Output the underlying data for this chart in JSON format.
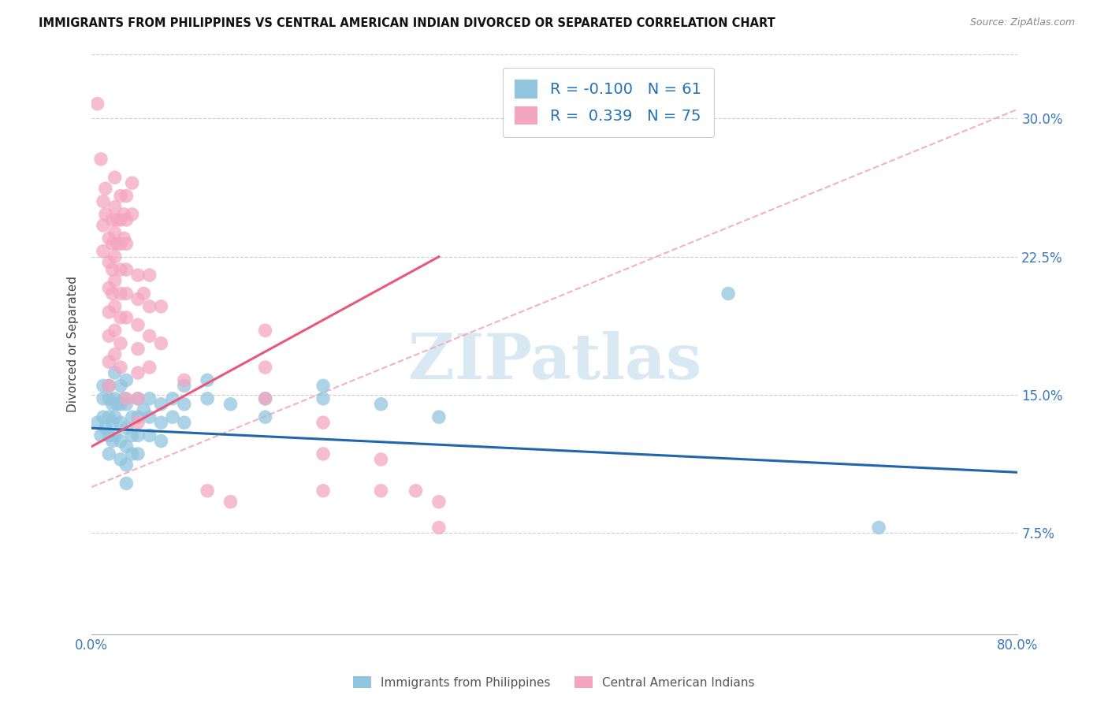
{
  "title": "IMMIGRANTS FROM PHILIPPINES VS CENTRAL AMERICAN INDIAN DIVORCED OR SEPARATED CORRELATION CHART",
  "source": "Source: ZipAtlas.com",
  "ylabel": "Divorced or Separated",
  "yticks": [
    "7.5%",
    "15.0%",
    "22.5%",
    "30.0%"
  ],
  "ytick_vals": [
    0.075,
    0.15,
    0.225,
    0.3
  ],
  "xlim": [
    0.0,
    0.8
  ],
  "ylim": [
    0.02,
    0.335
  ],
  "watermark": "ZIPatlas",
  "legend_blue_R": "R = -0.100",
  "legend_blue_N": "N = 61",
  "legend_pink_R": "R =  0.339",
  "legend_pink_N": "N = 75",
  "legend_label_blue": "Immigrants from Philippines",
  "legend_label_pink": "Central American Indians",
  "blue_color": "#92c5de",
  "pink_color": "#f4a6c0",
  "trendline_blue_color": "#2166ac",
  "trendline_pink_color": "#e8587a",
  "trendline_dashed_color": "#f4a6c0",
  "blue_trendline": [
    [
      0.0,
      0.132
    ],
    [
      0.8,
      0.108
    ]
  ],
  "pink_trendline": [
    [
      0.0,
      0.122
    ],
    [
      0.3,
      0.225
    ]
  ],
  "dashed_line": [
    [
      0.0,
      0.1
    ],
    [
      0.8,
      0.305
    ]
  ],
  "blue_scatter": [
    [
      0.005,
      0.135
    ],
    [
      0.008,
      0.128
    ],
    [
      0.01,
      0.155
    ],
    [
      0.01,
      0.148
    ],
    [
      0.01,
      0.138
    ],
    [
      0.012,
      0.132
    ],
    [
      0.015,
      0.155
    ],
    [
      0.015,
      0.148
    ],
    [
      0.015,
      0.138
    ],
    [
      0.015,
      0.128
    ],
    [
      0.015,
      0.118
    ],
    [
      0.018,
      0.145
    ],
    [
      0.018,
      0.135
    ],
    [
      0.018,
      0.125
    ],
    [
      0.02,
      0.162
    ],
    [
      0.02,
      0.148
    ],
    [
      0.02,
      0.138
    ],
    [
      0.02,
      0.128
    ],
    [
      0.022,
      0.145
    ],
    [
      0.025,
      0.155
    ],
    [
      0.025,
      0.145
    ],
    [
      0.025,
      0.135
    ],
    [
      0.025,
      0.125
    ],
    [
      0.025,
      0.115
    ],
    [
      0.028,
      0.148
    ],
    [
      0.03,
      0.158
    ],
    [
      0.03,
      0.145
    ],
    [
      0.03,
      0.132
    ],
    [
      0.03,
      0.122
    ],
    [
      0.03,
      0.112
    ],
    [
      0.03,
      0.102
    ],
    [
      0.035,
      0.138
    ],
    [
      0.035,
      0.128
    ],
    [
      0.035,
      0.118
    ],
    [
      0.04,
      0.148
    ],
    [
      0.04,
      0.138
    ],
    [
      0.04,
      0.128
    ],
    [
      0.04,
      0.118
    ],
    [
      0.045,
      0.142
    ],
    [
      0.05,
      0.148
    ],
    [
      0.05,
      0.138
    ],
    [
      0.05,
      0.128
    ],
    [
      0.06,
      0.145
    ],
    [
      0.06,
      0.135
    ],
    [
      0.06,
      0.125
    ],
    [
      0.07,
      0.148
    ],
    [
      0.07,
      0.138
    ],
    [
      0.08,
      0.155
    ],
    [
      0.08,
      0.145
    ],
    [
      0.08,
      0.135
    ],
    [
      0.1,
      0.158
    ],
    [
      0.1,
      0.148
    ],
    [
      0.12,
      0.145
    ],
    [
      0.15,
      0.148
    ],
    [
      0.15,
      0.138
    ],
    [
      0.2,
      0.155
    ],
    [
      0.2,
      0.148
    ],
    [
      0.25,
      0.145
    ],
    [
      0.3,
      0.138
    ],
    [
      0.55,
      0.205
    ],
    [
      0.68,
      0.078
    ]
  ],
  "pink_scatter": [
    [
      0.005,
      0.308
    ],
    [
      0.008,
      0.278
    ],
    [
      0.01,
      0.255
    ],
    [
      0.01,
      0.242
    ],
    [
      0.01,
      0.228
    ],
    [
      0.012,
      0.262
    ],
    [
      0.012,
      0.248
    ],
    [
      0.015,
      0.235
    ],
    [
      0.015,
      0.222
    ],
    [
      0.015,
      0.208
    ],
    [
      0.015,
      0.195
    ],
    [
      0.015,
      0.182
    ],
    [
      0.015,
      0.168
    ],
    [
      0.015,
      0.155
    ],
    [
      0.018,
      0.245
    ],
    [
      0.018,
      0.232
    ],
    [
      0.018,
      0.218
    ],
    [
      0.018,
      0.205
    ],
    [
      0.02,
      0.268
    ],
    [
      0.02,
      0.252
    ],
    [
      0.02,
      0.238
    ],
    [
      0.02,
      0.225
    ],
    [
      0.02,
      0.212
    ],
    [
      0.02,
      0.198
    ],
    [
      0.02,
      0.185
    ],
    [
      0.02,
      0.172
    ],
    [
      0.022,
      0.245
    ],
    [
      0.022,
      0.232
    ],
    [
      0.025,
      0.258
    ],
    [
      0.025,
      0.245
    ],
    [
      0.025,
      0.232
    ],
    [
      0.025,
      0.218
    ],
    [
      0.025,
      0.205
    ],
    [
      0.025,
      0.192
    ],
    [
      0.025,
      0.178
    ],
    [
      0.025,
      0.165
    ],
    [
      0.028,
      0.248
    ],
    [
      0.028,
      0.235
    ],
    [
      0.03,
      0.258
    ],
    [
      0.03,
      0.245
    ],
    [
      0.03,
      0.232
    ],
    [
      0.03,
      0.218
    ],
    [
      0.03,
      0.205
    ],
    [
      0.03,
      0.192
    ],
    [
      0.03,
      0.148
    ],
    [
      0.035,
      0.265
    ],
    [
      0.035,
      0.248
    ],
    [
      0.04,
      0.215
    ],
    [
      0.04,
      0.202
    ],
    [
      0.04,
      0.188
    ],
    [
      0.04,
      0.175
    ],
    [
      0.04,
      0.162
    ],
    [
      0.04,
      0.148
    ],
    [
      0.04,
      0.135
    ],
    [
      0.045,
      0.205
    ],
    [
      0.05,
      0.215
    ],
    [
      0.05,
      0.198
    ],
    [
      0.05,
      0.182
    ],
    [
      0.05,
      0.165
    ],
    [
      0.06,
      0.198
    ],
    [
      0.06,
      0.178
    ],
    [
      0.08,
      0.158
    ],
    [
      0.1,
      0.098
    ],
    [
      0.12,
      0.092
    ],
    [
      0.15,
      0.185
    ],
    [
      0.15,
      0.165
    ],
    [
      0.15,
      0.148
    ],
    [
      0.2,
      0.135
    ],
    [
      0.2,
      0.118
    ],
    [
      0.2,
      0.098
    ],
    [
      0.25,
      0.115
    ],
    [
      0.25,
      0.098
    ],
    [
      0.28,
      0.098
    ],
    [
      0.3,
      0.092
    ],
    [
      0.3,
      0.078
    ]
  ]
}
